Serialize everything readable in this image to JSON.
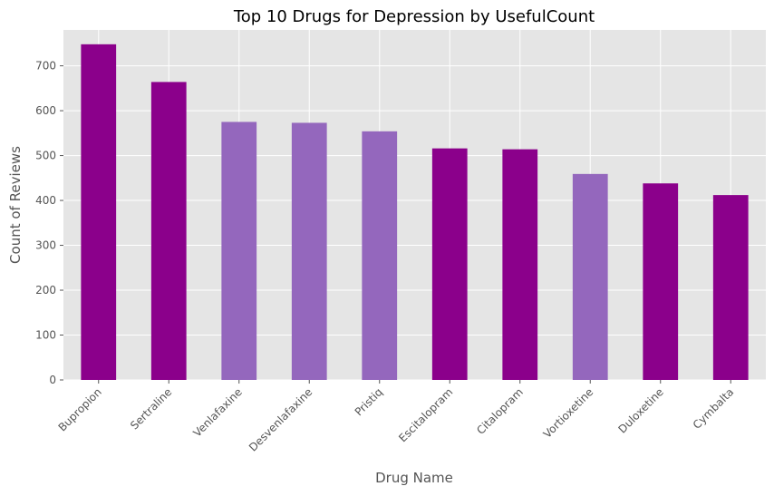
{
  "chart_data": {
    "type": "bar",
    "title": "Top 10 Drugs for Depression by UsefulCount",
    "xlabel": "Drug Name",
    "ylabel": "Count of Reviews",
    "categories": [
      "Bupropion",
      "Sertraline",
      "Venlafaxine",
      "Desvenlafaxine",
      "Pristiq",
      "Escitalopram",
      "Citalopram",
      "Vortioxetine",
      "Duloxetine",
      "Cymbalta"
    ],
    "values": [
      748,
      664,
      575,
      573,
      554,
      516,
      514,
      459,
      438,
      412
    ],
    "bar_colors": [
      "#8b008b",
      "#8b008b",
      "#9467bd",
      "#9467bd",
      "#9467bd",
      "#8b008b",
      "#8b008b",
      "#9467bd",
      "#8b008b",
      "#8b008b"
    ],
    "ylim": [
      0,
      780
    ],
    "yticks": [
      0,
      100,
      200,
      300,
      400,
      500,
      600,
      700
    ],
    "grid": true,
    "background": "#e5e5e5",
    "grid_color": "#ffffff"
  }
}
